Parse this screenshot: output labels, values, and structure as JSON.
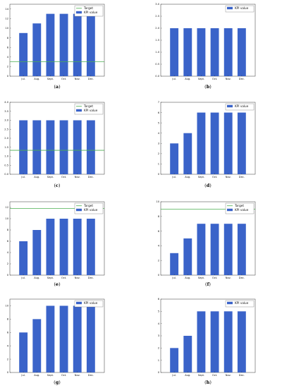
{
  "colors": {
    "bar": "#3a63c9",
    "target": "#4caf50",
    "axis": "#333333"
  },
  "chart_data": [
    {
      "panel": "a",
      "caption_letter": "a",
      "type": "bar",
      "categories": [
        "Jul.",
        "Aug.",
        "Sept.",
        "Oct.",
        "Nov.",
        "Dec."
      ],
      "series": [
        {
          "name": "KPI value",
          "values": [
            9,
            11,
            13,
            13,
            13,
            13
          ]
        }
      ],
      "target": {
        "name": "Target",
        "value": 3
      },
      "ylim": [
        0,
        15
      ],
      "yticks": [
        "0",
        "2",
        "4",
        "6",
        "8",
        "10",
        "12",
        "14"
      ],
      "legend": "top-right",
      "grid": false
    },
    {
      "panel": "b",
      "caption_letter": "b",
      "type": "bar",
      "categories": [
        "Jul.",
        "Aug.",
        "Sept.",
        "Oct.",
        "Nov.",
        "Dec."
      ],
      "series": [
        {
          "name": "KPI value",
          "values": [
            2,
            2,
            2,
            2,
            2,
            2
          ]
        }
      ],
      "target": null,
      "ylim": [
        0,
        3
      ],
      "yticks": [
        "0.0",
        "0.5",
        "1.0",
        "1.5",
        "2.0",
        "2.5",
        "3.0"
      ],
      "legend": "top-right",
      "grid": false
    },
    {
      "panel": "c",
      "caption_letter": "c",
      "type": "bar",
      "categories": [
        "Jul.",
        "Aug.",
        "Sept.",
        "Oct.",
        "Nov.",
        "Dec."
      ],
      "series": [
        {
          "name": "KPI value",
          "values": [
            3,
            3,
            3,
            3,
            3,
            3
          ]
        }
      ],
      "target": {
        "name": "Target",
        "value": 1.33
      },
      "ylim": [
        0,
        4
      ],
      "yticks": [
        "0.0",
        "0.5",
        "1.0",
        "1.5",
        "2.0",
        "2.5",
        "3.0",
        "3.5",
        "4.0"
      ],
      "legend": "top-right",
      "grid": false
    },
    {
      "panel": "d",
      "caption_letter": "d",
      "type": "bar",
      "categories": [
        "Jul.",
        "Aug.",
        "Sept.",
        "Oct.",
        "Nov.",
        "Dec."
      ],
      "series": [
        {
          "name": "KPI value",
          "values": [
            3,
            4,
            6,
            6,
            6,
            6
          ]
        }
      ],
      "target": null,
      "ylim": [
        0,
        7
      ],
      "yticks": [
        "0",
        "1",
        "2",
        "3",
        "4",
        "5",
        "6",
        "7"
      ],
      "legend": "top-right",
      "grid": false
    },
    {
      "panel": "e",
      "caption_letter": "e",
      "type": "bar",
      "categories": [
        "Jul.",
        "Aug.",
        "Sept.",
        "Oct.",
        "Nov.",
        "Dec."
      ],
      "series": [
        {
          "name": "KPI value",
          "values": [
            6,
            8,
            10,
            10,
            10,
            10
          ]
        }
      ],
      "target": {
        "name": "Target",
        "value": 11.8
      },
      "ylim": [
        0,
        13
      ],
      "yticks": [
        "0",
        "2",
        "4",
        "6",
        "8",
        "10",
        "12"
      ],
      "legend": "top-right",
      "grid": false
    },
    {
      "panel": "f",
      "caption_letter": "f",
      "type": "bar",
      "categories": [
        "Jul.",
        "Aug.",
        "Sept.",
        "Oct.",
        "Nov.",
        "Dec."
      ],
      "series": [
        {
          "name": "KPI value",
          "values": [
            3,
            5,
            7,
            7,
            7,
            7
          ]
        }
      ],
      "target": {
        "name": "Target",
        "value": 9
      },
      "ylim": [
        0,
        10
      ],
      "yticks": [
        "0",
        "2",
        "4",
        "6",
        "8",
        "10"
      ],
      "legend": "top-right",
      "grid": false
    },
    {
      "panel": "g",
      "caption_letter": "g",
      "type": "bar",
      "categories": [
        "Jul.",
        "Aug.",
        "Sept.",
        "Oct.",
        "Nov.",
        "Dec."
      ],
      "series": [
        {
          "name": "KPI value",
          "values": [
            6,
            8,
            10,
            10,
            10,
            10
          ]
        }
      ],
      "target": null,
      "ylim": [
        0,
        11
      ],
      "yticks": [
        "0",
        "2",
        "4",
        "6",
        "8",
        "10"
      ],
      "legend": "top-right",
      "grid": false
    },
    {
      "panel": "h",
      "caption_letter": "h",
      "type": "bar",
      "categories": [
        "Jul.",
        "Aug.",
        "Sept.",
        "Oct.",
        "Nov.",
        "Dec."
      ],
      "series": [
        {
          "name": "KPI value",
          "values": [
            2,
            3,
            5,
            5,
            5,
            5
          ]
        }
      ],
      "target": null,
      "ylim": [
        0,
        6
      ],
      "yticks": [
        "0",
        "1",
        "2",
        "3",
        "4",
        "5",
        "6"
      ],
      "legend": "top-right",
      "grid": false
    }
  ]
}
